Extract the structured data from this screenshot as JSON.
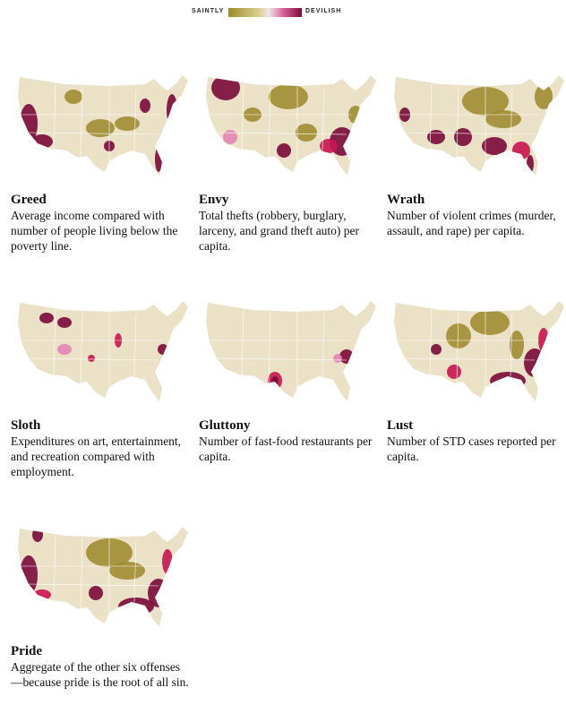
{
  "legend": {
    "low": "SAINTLY",
    "high": "DEVILISH"
  },
  "panels": [
    {
      "title": "Greed",
      "description": "Average income compared with number of people living below the poverty line."
    },
    {
      "title": "Envy",
      "description": "Total thefts (robbery, burglary, larceny, and grand theft auto) per capita."
    },
    {
      "title": "Wrath",
      "description": "Number of violent crimes (murder, assault, and rape) per capita."
    },
    {
      "title": "Sloth",
      "description": "Expenditures on art, entertainment, and recreation compared with employment."
    },
    {
      "title": "Gluttony",
      "description": "Number of fast-food restaurants per capita."
    },
    {
      "title": "Lust",
      "description": "Number of STD cases reported per capita."
    },
    {
      "title": "Pride",
      "description": "Aggregate of the other six offenses—because pride is the root of all sin."
    }
  ]
}
